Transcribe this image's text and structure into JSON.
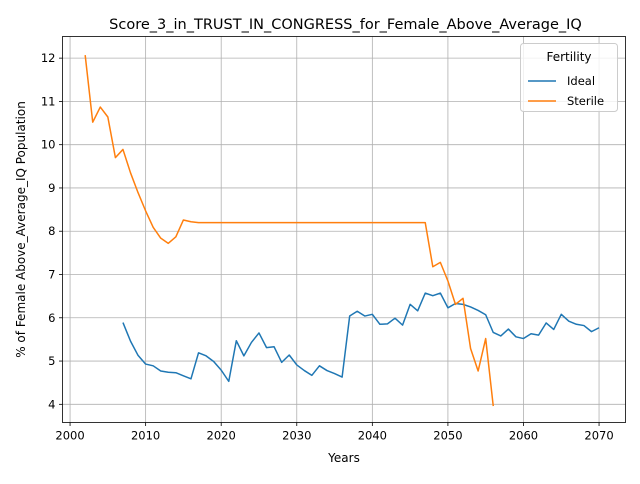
{
  "chart_data": {
    "type": "line",
    "title": "Score_3_in_TRUST_IN_CONGRESS_for_Female_Above_Average_IQ",
    "xlabel": "Years",
    "ylabel": "% of Female Above_Average_IQ Population",
    "xlim": [
      1999,
      2073.5
    ],
    "ylim": [
      3.58,
      12.5
    ],
    "x_ticks": [
      2000,
      2010,
      2020,
      2030,
      2040,
      2050,
      2060,
      2070
    ],
    "y_ticks": [
      4,
      5,
      6,
      7,
      8,
      9,
      10,
      11,
      12
    ],
    "grid": true,
    "legend": {
      "title": "Fertility",
      "placement": "top-right"
    },
    "series": [
      {
        "name": "Ideal",
        "color": "#1f77b4",
        "x": [
          2007,
          2008,
          2009,
          2010,
          2011,
          2012,
          2013,
          2014,
          2015,
          2016,
          2017,
          2018,
          2019,
          2020,
          2021,
          2022,
          2023,
          2024,
          2025,
          2026,
          2027,
          2028,
          2029,
          2030,
          2031,
          2032,
          2033,
          2034,
          2035,
          2036,
          2037,
          2038,
          2039,
          2040,
          2041,
          2042,
          2043,
          2044,
          2045,
          2046,
          2047,
          2048,
          2049,
          2050,
          2051,
          2052,
          2053,
          2054,
          2055,
          2056,
          2057,
          2058,
          2059,
          2060,
          2061,
          2062,
          2063,
          2064,
          2065,
          2066,
          2067,
          2068,
          2069,
          2070
        ],
        "values": [
          5.89,
          5.46,
          5.13,
          4.93,
          4.89,
          4.77,
          4.74,
          4.73,
          4.66,
          4.59,
          5.19,
          5.12,
          4.99,
          4.79,
          4.53,
          5.47,
          5.12,
          5.43,
          5.65,
          5.31,
          5.33,
          4.97,
          5.14,
          4.91,
          4.78,
          4.67,
          4.89,
          4.78,
          4.71,
          4.63,
          6.04,
          6.15,
          6.04,
          6.08,
          5.85,
          5.86,
          5.99,
          5.83,
          6.31,
          6.16,
          6.57,
          6.51,
          6.57,
          6.23,
          6.33,
          6.31,
          6.25,
          6.17,
          6.07,
          5.66,
          5.58,
          5.74,
          5.56,
          5.52,
          5.63,
          5.6,
          5.88,
          5.73,
          6.08,
          5.92,
          5.85,
          5.82,
          5.68,
          5.77
        ]
      },
      {
        "name": "Sterile",
        "color": "#ff7f0e",
        "x": [
          2002,
          2003,
          2004,
          2005,
          2006,
          2007,
          2008,
          2009,
          2010,
          2011,
          2012,
          2013,
          2014,
          2015,
          2016,
          2017,
          2018,
          2019,
          2020,
          2021,
          2022,
          2023,
          2024,
          2025,
          2026,
          2027,
          2028,
          2029,
          2030,
          2031,
          2032,
          2033,
          2034,
          2035,
          2036,
          2037,
          2038,
          2039,
          2040,
          2041,
          2042,
          2043,
          2044,
          2045,
          2046,
          2047,
          2048,
          2049,
          2050,
          2051,
          2052,
          2053,
          2054,
          2055,
          2056
        ],
        "values": [
          12.07,
          10.52,
          10.87,
          10.64,
          9.7,
          9.89,
          9.35,
          8.89,
          8.47,
          8.09,
          7.84,
          7.72,
          7.87,
          8.26,
          8.22,
          8.2,
          8.2,
          8.2,
          8.2,
          8.2,
          8.2,
          8.2,
          8.2,
          8.2,
          8.2,
          8.2,
          8.2,
          8.2,
          8.2,
          8.2,
          8.2,
          8.2,
          8.2,
          8.2,
          8.2,
          8.2,
          8.2,
          8.2,
          8.2,
          8.2,
          8.2,
          8.2,
          8.2,
          8.2,
          8.2,
          8.2,
          7.18,
          7.28,
          6.85,
          6.31,
          6.45,
          5.29,
          4.77,
          5.52,
          3.96
        ]
      }
    ]
  }
}
